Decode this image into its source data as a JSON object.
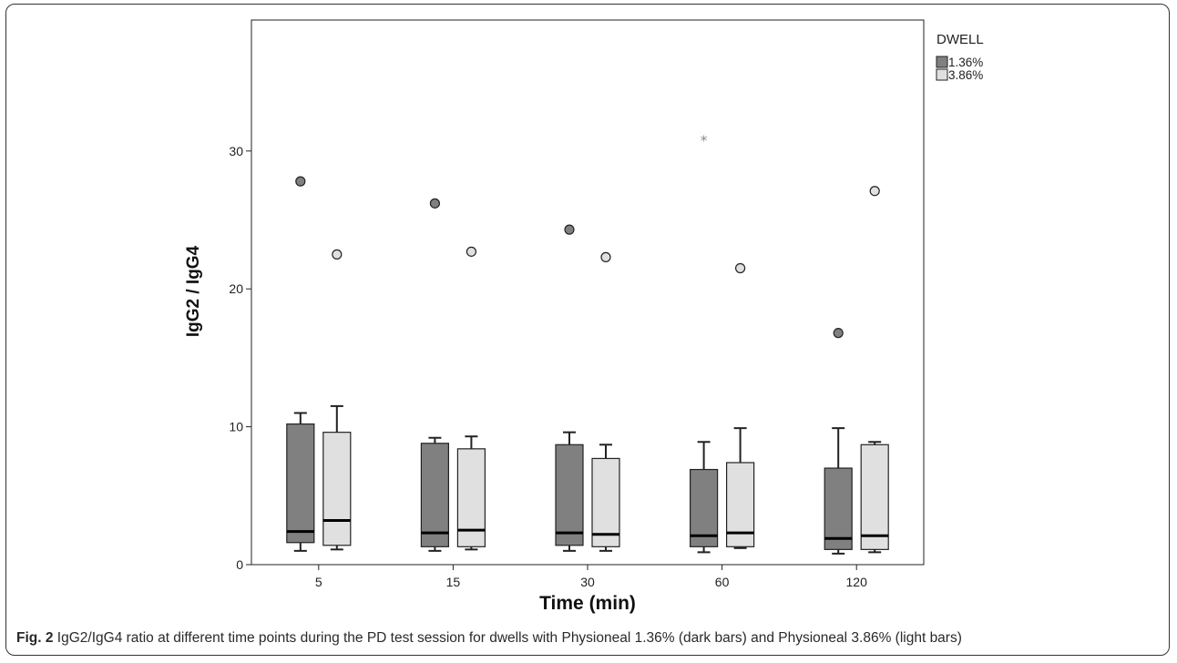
{
  "caption": {
    "label": "Fig. 2",
    "text": "IgG2/IgG4 ratio at different time points during the PD test session for dwells with Physioneal 1.36% (dark bars) and Physioneal 3.86% (light bars)"
  },
  "chart_data": {
    "type": "boxplot",
    "title": "",
    "xlabel": "Time (min)",
    "ylabel": "IgG2 / IgG4",
    "categories": [
      "5",
      "15",
      "30",
      "60",
      "120"
    ],
    "ylim": [
      0,
      39.5
    ],
    "yticks": [
      0,
      10,
      20,
      30
    ],
    "grid": false,
    "legend": {
      "title": "DWELL",
      "position": "top-right"
    },
    "colors": {
      "dark": "#808080",
      "light": "#e0e0e0",
      "outline": "#222222"
    },
    "series": [
      {
        "name": "1.36%",
        "boxes": [
          {
            "min": 1.0,
            "q1": 1.6,
            "median": 2.4,
            "q3": 10.2,
            "max": 11.0
          },
          {
            "min": 1.0,
            "q1": 1.3,
            "median": 2.3,
            "q3": 8.8,
            "max": 9.2
          },
          {
            "min": 1.0,
            "q1": 1.4,
            "median": 2.3,
            "q3": 8.7,
            "max": 9.6
          },
          {
            "min": 0.9,
            "q1": 1.3,
            "median": 2.1,
            "q3": 6.9,
            "max": 8.9
          },
          {
            "min": 0.8,
            "q1": 1.1,
            "median": 1.9,
            "q3": 7.0,
            "max": 9.9
          }
        ],
        "outliers": [
          {
            "category": "5",
            "value": 27.8,
            "marker": "circle"
          },
          {
            "category": "15",
            "value": 26.2,
            "marker": "circle"
          },
          {
            "category": "30",
            "value": 24.3,
            "marker": "circle"
          },
          {
            "category": "60",
            "value": 30.8,
            "marker": "star"
          },
          {
            "category": "120",
            "value": 16.8,
            "marker": "circle"
          }
        ]
      },
      {
        "name": "3.86%",
        "boxes": [
          {
            "min": 1.1,
            "q1": 1.4,
            "median": 3.2,
            "q3": 9.6,
            "max": 11.5
          },
          {
            "min": 1.1,
            "q1": 1.3,
            "median": 2.5,
            "q3": 8.4,
            "max": 9.3
          },
          {
            "min": 1.0,
            "q1": 1.3,
            "median": 2.2,
            "q3": 7.7,
            "max": 8.7
          },
          {
            "min": 1.2,
            "q1": 1.3,
            "median": 2.3,
            "q3": 7.4,
            "max": 9.9
          },
          {
            "min": 0.9,
            "q1": 1.1,
            "median": 2.1,
            "q3": 8.7,
            "max": 8.9
          }
        ],
        "outliers": [
          {
            "category": "5",
            "value": 22.5,
            "marker": "circle"
          },
          {
            "category": "15",
            "value": 22.7,
            "marker": "circle"
          },
          {
            "category": "30",
            "value": 22.3,
            "marker": "circle"
          },
          {
            "category": "60",
            "value": 21.5,
            "marker": "circle"
          },
          {
            "category": "120",
            "value": 27.1,
            "marker": "circle"
          }
        ]
      }
    ]
  }
}
